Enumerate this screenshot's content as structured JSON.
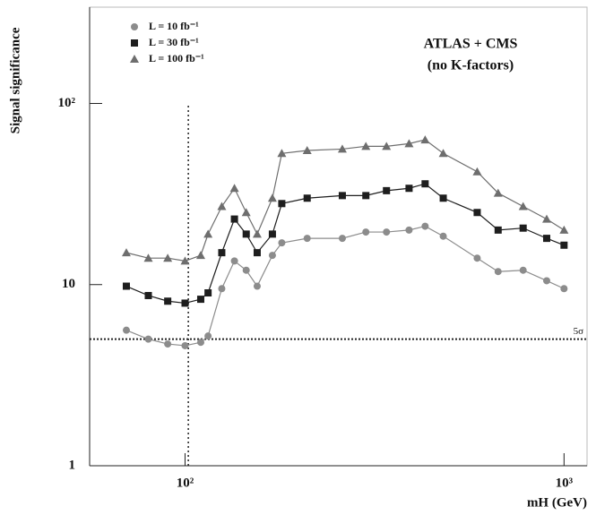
{
  "chart_data": {
    "type": "line",
    "x_label": "mH (GeV)",
    "y_label": "Signal significance",
    "xscale": "log",
    "yscale": "log",
    "xlim": [
      56,
      1150
    ],
    "ylim": [
      1,
      340
    ],
    "xticks": [
      {
        "value": 100,
        "label": "10²"
      },
      {
        "value": 1000,
        "label": "10³"
      }
    ],
    "yticks": [
      1,
      10,
      {
        "value": 100,
        "label": "10²"
      }
    ],
    "x": [
      70,
      80,
      90,
      100,
      110,
      115,
      125,
      135,
      145,
      155,
      170,
      180,
      210,
      260,
      300,
      340,
      390,
      430,
      480,
      590,
      670,
      780,
      900,
      1000
    ],
    "series": [
      {
        "name": "L = 10 fb⁻¹",
        "color": "#8c8c8c",
        "marker": "circle",
        "values": [
          5.6,
          5.0,
          4.7,
          4.6,
          4.8,
          5.2,
          9.5,
          13.5,
          12,
          9.8,
          14.5,
          17,
          18,
          18,
          19.5,
          19.5,
          20,
          21,
          18.5,
          14,
          11.8,
          12,
          10.5,
          9.5
        ]
      },
      {
        "name": "L = 30 fb⁻¹",
        "color": "#1e1e1e",
        "marker": "square",
        "values": [
          9.8,
          8.7,
          8.1,
          7.9,
          8.3,
          9,
          15,
          23,
          19,
          15,
          19,
          28,
          30,
          31,
          31,
          33,
          34,
          36,
          30,
          25,
          20,
          20.5,
          18,
          16.5
        ]
      },
      {
        "name": "L = 100 fb⁻¹",
        "color": "#6e6e6e",
        "marker": "triangle",
        "values": [
          15,
          14,
          14,
          13.5,
          14.5,
          19,
          27,
          34,
          25,
          19,
          30,
          53,
          55,
          56,
          58,
          58,
          60,
          63,
          53,
          42,
          32,
          27,
          23,
          20
        ]
      }
    ],
    "annotations": [
      "ATLAS + CMS",
      "(no K-factors)"
    ],
    "vline": 102,
    "hline": 5,
    "hline_label": "5σ"
  }
}
